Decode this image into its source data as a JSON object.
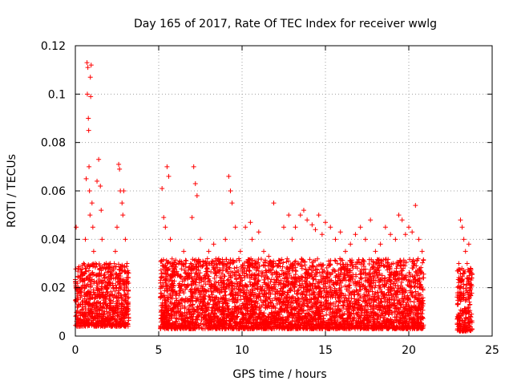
{
  "chart_data": {
    "type": "scatter",
    "title": "Day 165 of 2017, Rate Of TEC Index for receiver wwlg",
    "xlabel": "GPS time / hours",
    "ylabel": "ROTI / TECUs",
    "xlim": [
      0,
      25
    ],
    "ylim": [
      0,
      0.12
    ],
    "x_ticks": [
      0,
      5,
      10,
      15,
      20,
      25
    ],
    "x_tick_labels": [
      "0",
      "5",
      "10",
      "15",
      "20",
      "25"
    ],
    "y_ticks": [
      0,
      0.02,
      0.04,
      0.06,
      0.08,
      0.1,
      0.12
    ],
    "y_tick_labels": [
      "0",
      "0.02",
      "0.04",
      "0.06",
      "0.08",
      "0.1",
      "0.12"
    ],
    "grid": true,
    "marker": "+",
    "series": [
      {
        "name": "ROTI",
        "color": "#ff0000",
        "x": [
          0.05,
          0.1,
          0.15,
          0.2,
          0.3,
          0.4,
          0.5,
          0.6,
          0.65,
          0.7,
          0.72,
          0.75,
          0.78,
          0.8,
          0.82,
          0.85,
          0.88,
          0.9,
          0.92,
          0.95,
          1.0,
          1.05,
          1.1,
          1.2,
          1.3,
          1.4,
          1.5,
          1.55,
          1.6,
          1.7,
          1.8,
          1.9,
          2.0,
          2.1,
          2.2,
          2.3,
          2.4,
          2.5,
          2.6,
          2.65,
          2.7,
          2.8,
          2.85,
          2.9,
          3.0,
          3.1,
          5.2,
          5.3,
          5.4,
          5.5,
          5.6,
          5.7,
          5.8,
          6.0,
          6.2,
          6.5,
          6.8,
          7.0,
          7.1,
          7.2,
          7.3,
          7.5,
          7.8,
          8.0,
          8.3,
          8.6,
          9.0,
          9.2,
          9.3,
          9.4,
          9.6,
          9.9,
          10.2,
          10.5,
          10.6,
          10.8,
          11.0,
          11.3,
          11.6,
          11.9,
          12.2,
          12.5,
          12.8,
          13.0,
          13.2,
          13.5,
          13.7,
          13.9,
          14.2,
          14.4,
          14.6,
          14.8,
          15.0,
          15.3,
          15.6,
          15.9,
          16.2,
          16.5,
          16.8,
          17.1,
          17.4,
          17.7,
          18.0,
          18.3,
          18.6,
          18.9,
          19.2,
          19.4,
          19.6,
          19.8,
          20.0,
          20.2,
          20.4,
          20.6,
          20.8,
          23.0,
          23.1,
          23.2,
          23.3,
          23.4,
          23.5,
          23.6,
          23.7
        ],
        "y": [
          0.045,
          0.015,
          0.012,
          0.02,
          0.018,
          0.025,
          0.03,
          0.04,
          0.065,
          0.113,
          0.1,
          0.111,
          0.09,
          0.085,
          0.07,
          0.06,
          0.05,
          0.107,
          0.099,
          0.112,
          0.055,
          0.045,
          0.035,
          0.03,
          0.064,
          0.073,
          0.062,
          0.052,
          0.04,
          0.025,
          0.02,
          0.018,
          0.022,
          0.03,
          0.025,
          0.02,
          0.035,
          0.045,
          0.071,
          0.069,
          0.06,
          0.055,
          0.05,
          0.06,
          0.04,
          0.03,
          0.061,
          0.049,
          0.045,
          0.07,
          0.066,
          0.04,
          0.03,
          0.025,
          0.03,
          0.035,
          0.025,
          0.049,
          0.07,
          0.063,
          0.058,
          0.04,
          0.03,
          0.035,
          0.038,
          0.032,
          0.04,
          0.066,
          0.06,
          0.055,
          0.045,
          0.035,
          0.045,
          0.047,
          0.04,
          0.03,
          0.043,
          0.035,
          0.033,
          0.055,
          0.03,
          0.045,
          0.05,
          0.04,
          0.045,
          0.05,
          0.052,
          0.048,
          0.046,
          0.044,
          0.05,
          0.042,
          0.047,
          0.045,
          0.04,
          0.043,
          0.035,
          0.038,
          0.042,
          0.045,
          0.04,
          0.048,
          0.035,
          0.038,
          0.045,
          0.042,
          0.04,
          0.05,
          0.048,
          0.042,
          0.045,
          0.043,
          0.054,
          0.04,
          0.035,
          0.03,
          0.048,
          0.045,
          0.04,
          0.035,
          0.03,
          0.038,
          0.028
        ],
        "band_coverage": [
          {
            "x_range": [
              0.0,
              3.2
            ],
            "y_range": [
              0.004,
              0.03
            ]
          },
          {
            "x_range": [
              5.1,
              20.9
            ],
            "y_range": [
              0.003,
              0.032
            ]
          },
          {
            "x_range": [
              22.9,
              23.8
            ],
            "y_range": [
              0.002,
              0.028
            ]
          }
        ]
      }
    ]
  }
}
